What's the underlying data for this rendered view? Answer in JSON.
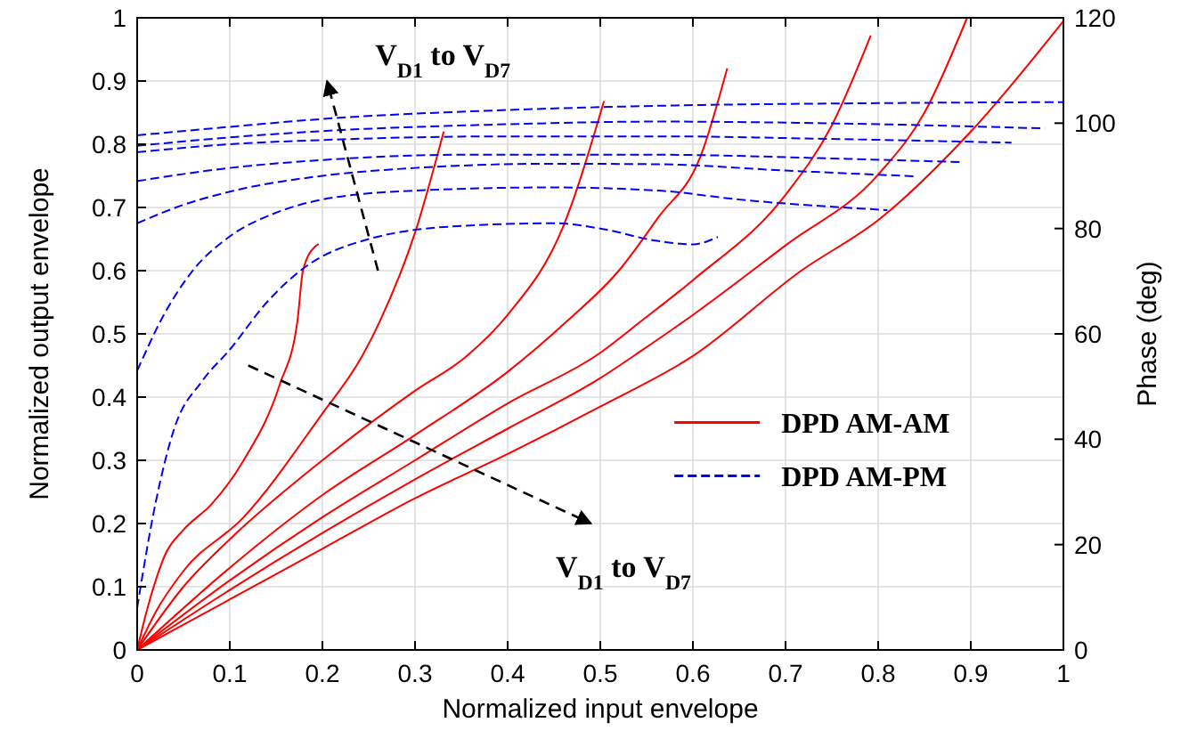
{
  "chart_data": {
    "type": "line",
    "xlabel": "Normalized input envelope",
    "ylabel": "Normalized output envelope",
    "y2label": "Phase (deg)",
    "xlim": [
      0,
      1
    ],
    "xticks": [
      0,
      0.1,
      0.2,
      0.3,
      0.4,
      0.5,
      0.6,
      0.7,
      0.8,
      0.9,
      1
    ],
    "ylim": [
      0,
      1
    ],
    "yticks": [
      0,
      0.1,
      0.2,
      0.3,
      0.4,
      0.5,
      0.6,
      0.7,
      0.8,
      0.9,
      1
    ],
    "y2lim": [
      0,
      120
    ],
    "y2ticks": [
      0,
      20,
      40,
      60,
      80,
      100,
      120
    ],
    "grid": true,
    "legend": "right",
    "marker": "none",
    "annotations": [
      "V$_{D1}$ to V$_{D7}$",
      "V$_{D1}$ to V$_{D7}$"
    ],
    "series": [
      {
        "name": "DPD AM-AM",
        "color": "#ff0000",
        "line_style": "solid",
        "x": [
          0,
          0.01,
          0.02,
          0.03,
          0.05,
          0.08,
          0.115,
          0.154,
          0.173,
          0.179,
          0.192,
          0.196
        ],
        "values": [
          0,
          0.06,
          0.11,
          0.15,
          0.19,
          0.23,
          0.3,
          0.42,
          0.52,
          0.6,
          0.638,
          0.642
        ]
      },
      {
        "color": "#ff0000",
        "line_style": "solid",
        "x": [
          0,
          0.02,
          0.05,
          0.115,
          0.198,
          0.243,
          0.262,
          0.3,
          0.331
        ],
        "values": [
          0,
          0.06,
          0.125,
          0.21,
          0.37,
          0.465,
          0.52,
          0.66,
          0.82
        ]
      },
      {
        "color": "#ff0000",
        "line_style": "solid",
        "x": [
          0,
          0.05,
          0.1,
          0.2,
          0.3,
          0.356,
          0.4,
          0.46,
          0.504
        ],
        "values": [
          0,
          0.1,
          0.175,
          0.3,
          0.41,
          0.465,
          0.53,
          0.67,
          0.868
        ]
      },
      {
        "color": "#ff0000",
        "line_style": "solid",
        "x": [
          0,
          0.1,
          0.2,
          0.3,
          0.4,
          0.464,
          0.52,
          0.563,
          0.608,
          0.637
        ],
        "values": [
          0,
          0.13,
          0.245,
          0.34,
          0.44,
          0.52,
          0.6,
          0.685,
          0.78,
          0.92
        ]
      },
      {
        "color": "#ff0000",
        "line_style": "solid",
        "x": [
          0,
          0.1,
          0.2,
          0.3,
          0.4,
          0.5,
          0.544,
          0.6,
          0.7,
          0.75,
          0.792
        ],
        "values": [
          0,
          0.11,
          0.21,
          0.3,
          0.39,
          0.47,
          0.52,
          0.585,
          0.72,
          0.83,
          0.972
        ]
      },
      {
        "color": "#ff0000",
        "line_style": "solid",
        "x": [
          0,
          0.1,
          0.2,
          0.3,
          0.4,
          0.5,
          0.544,
          0.6,
          0.7,
          0.8,
          0.85,
          0.896
        ],
        "values": [
          0,
          0.095,
          0.185,
          0.27,
          0.35,
          0.43,
          0.473,
          0.53,
          0.64,
          0.752,
          0.85,
          1.0
        ]
      },
      {
        "color": "#ff0000",
        "line_style": "solid",
        "x": [
          0,
          0.1,
          0.2,
          0.3,
          0.4,
          0.5,
          0.6,
          0.717,
          0.8,
          0.9,
          1.0
        ],
        "values": [
          0,
          0.08,
          0.16,
          0.24,
          0.31,
          0.385,
          0.465,
          0.6,
          0.68,
          0.82,
          0.995
        ]
      },
      {
        "name": "DPD AM-PM",
        "color": "#0000ff",
        "axis": "y2",
        "line_style": "dashed",
        "x": [
          0,
          0.02,
          0.04,
          0.07,
          0.1,
          0.14,
          0.18,
          0.25,
          0.35,
          0.45,
          0.5,
          0.56,
          0.6,
          0.627
        ],
        "values": [
          8,
          28,
          42,
          51,
          57,
          66,
          72.5,
          78,
          80.5,
          81,
          80,
          77.7,
          77,
          78.4
        ]
      },
      {
        "color": "#0000ff",
        "axis": "y2",
        "line_style": "dashed",
        "x": [
          0,
          0.03,
          0.06,
          0.1,
          0.15,
          0.2,
          0.3,
          0.45,
          0.563,
          0.65,
          0.81
        ],
        "values": [
          53,
          64,
          72,
          78.5,
          83,
          85.5,
          87.2,
          87.8,
          87.2,
          85.5,
          83.5
        ]
      },
      {
        "color": "#0000ff",
        "axis": "y2",
        "line_style": "dashed",
        "x": [
          0,
          0.05,
          0.1,
          0.2,
          0.3,
          0.45,
          0.563,
          0.7,
          0.842
        ],
        "values": [
          81,
          84.5,
          87,
          90,
          91.5,
          92.3,
          92.2,
          91,
          89.9
        ]
      },
      {
        "color": "#0000ff",
        "axis": "y2",
        "line_style": "dashed",
        "x": [
          0,
          0.1,
          0.2,
          0.35,
          0.563,
          0.75,
          0.89
        ],
        "values": [
          89,
          91.5,
          93,
          94,
          94,
          93.3,
          92.6
        ]
      },
      {
        "color": "#0000ff",
        "axis": "y2",
        "line_style": "dashed",
        "x": [
          0,
          0.1,
          0.2,
          0.4,
          0.563,
          0.75,
          0.944
        ],
        "values": [
          94.5,
          96,
          96.8,
          97.5,
          97.5,
          97,
          96.3
        ]
      },
      {
        "color": "#0000ff",
        "axis": "y2",
        "line_style": "dashed",
        "x": [
          0,
          0.1,
          0.2,
          0.4,
          0.563,
          0.8,
          0.98
        ],
        "values": [
          95.7,
          97.3,
          98.5,
          99.8,
          100.3,
          99.8,
          99
        ]
      },
      {
        "color": "#0000ff",
        "axis": "y2",
        "line_style": "dashed",
        "x": [
          0,
          0.1,
          0.2,
          0.4,
          0.563,
          0.8,
          1.0
        ],
        "values": [
          97.7,
          99.3,
          100.8,
          102.5,
          103.3,
          103.8,
          104
        ]
      }
    ]
  }
}
